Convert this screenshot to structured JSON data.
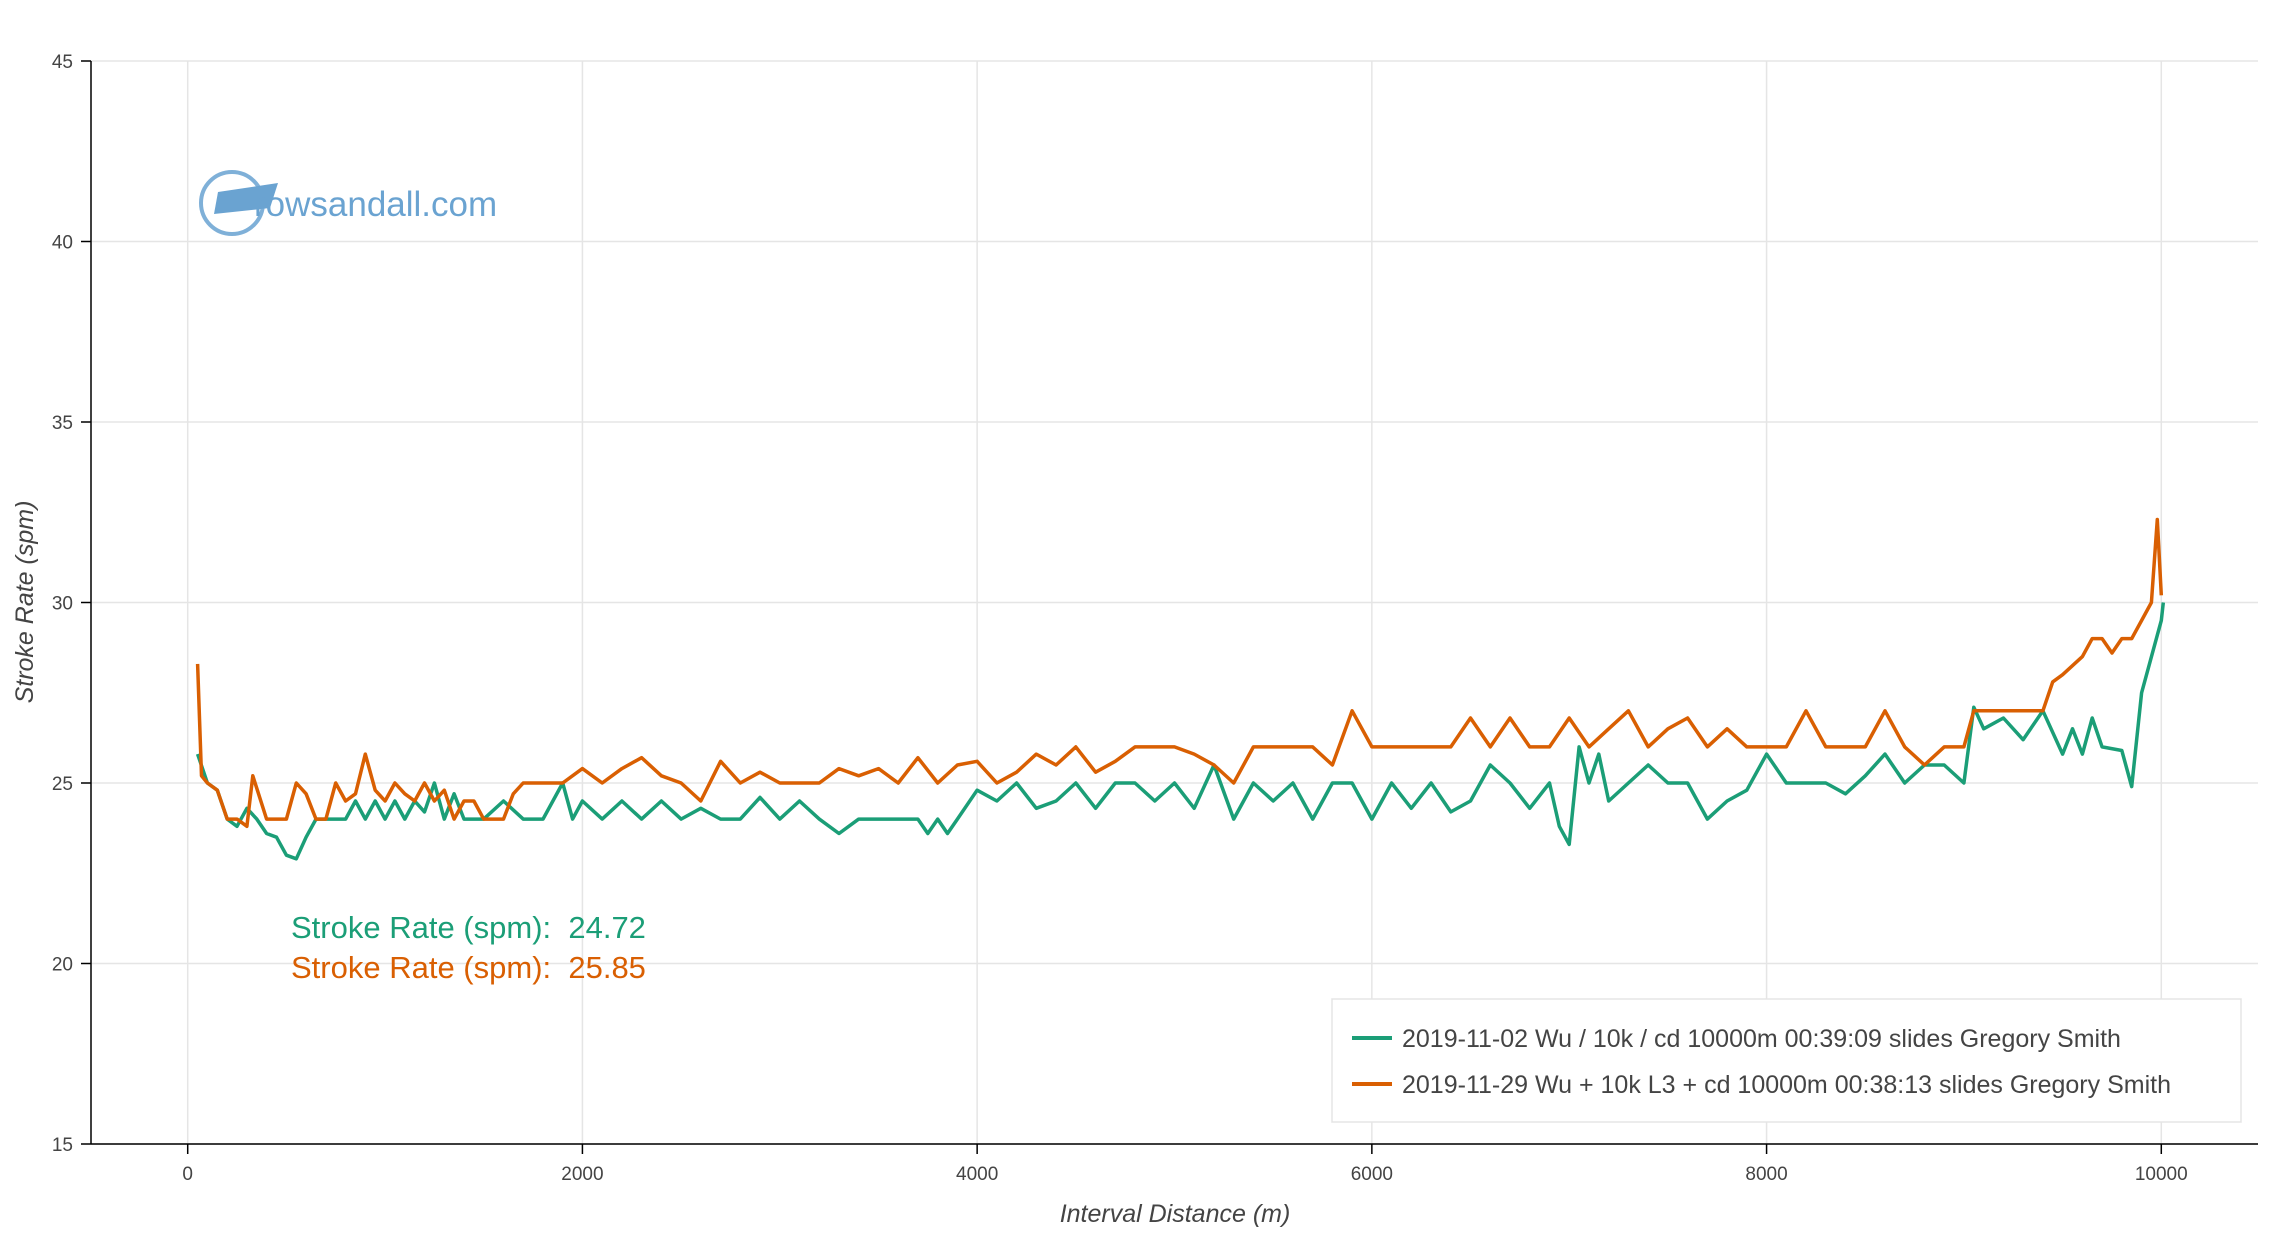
{
  "chart_data": {
    "type": "line",
    "xlabel": "Interval Distance (m)",
    "ylabel": "Stroke Rate (spm)",
    "logo": "rowsandall.com",
    "xlim": [
      -490,
      10490
    ],
    "ylim": [
      15,
      45
    ],
    "xticks": [
      0,
      2000,
      4000,
      6000,
      8000,
      10000
    ],
    "yticks": [
      15,
      20,
      25,
      30,
      35,
      40,
      45
    ],
    "grid": true,
    "legend": "lower right",
    "annotations": [
      {
        "text": "Stroke Rate (spm):  24.72",
        "color": "#1b9e77"
      },
      {
        "text": "Stroke Rate (spm):  25.85",
        "color": "#d95f02"
      }
    ],
    "series": [
      {
        "name": "2019-11-02 Wu / 10k / cd 10000m 00:39:09 slides Gregory Smith",
        "color": "#1b9e77",
        "x": [
          50,
          100,
          150,
          200,
          250,
          300,
          350,
          400,
          450,
          500,
          550,
          600,
          650,
          700,
          800,
          850,
          900,
          950,
          1000,
          1050,
          1100,
          1150,
          1200,
          1250,
          1300,
          1350,
          1400,
          1500,
          1600,
          1700,
          1800,
          1900,
          1950,
          2000,
          2100,
          2200,
          2300,
          2400,
          2500,
          2600,
          2700,
          2800,
          2900,
          3000,
          3100,
          3200,
          3300,
          3400,
          3500,
          3600,
          3700,
          3750,
          3800,
          3850,
          3900,
          4000,
          4100,
          4200,
          4300,
          4400,
          4500,
          4600,
          4700,
          4800,
          4900,
          5000,
          5100,
          5200,
          5300,
          5400,
          5500,
          5600,
          5700,
          5800,
          5900,
          6000,
          6100,
          6200,
          6300,
          6400,
          6500,
          6600,
          6700,
          6800,
          6900,
          6950,
          7000,
          7050,
          7100,
          7150,
          7200,
          7300,
          7400,
          7500,
          7600,
          7700,
          7800,
          7900,
          8000,
          8100,
          8200,
          8300,
          8400,
          8500,
          8600,
          8700,
          8800,
          8900,
          9000,
          9050,
          9100,
          9200,
          9300,
          9400,
          9500,
          9550,
          9600,
          9650,
          9700,
          9800,
          9850,
          9900,
          10000,
          10010
        ],
        "values": [
          25.8,
          25,
          24.8,
          24,
          23.8,
          24.3,
          24,
          23.6,
          23.5,
          23,
          22.9,
          23.5,
          24,
          24,
          24,
          24.5,
          24,
          24.5,
          24,
          24.5,
          24,
          24.5,
          24.2,
          25,
          24,
          24.7,
          24,
          24,
          24.5,
          24,
          24,
          25,
          24,
          24.5,
          24,
          24.5,
          24,
          24.5,
          24,
          24.3,
          24,
          24,
          24.6,
          24,
          24.5,
          24,
          23.6,
          24,
          24,
          24,
          24,
          23.6,
          24,
          23.6,
          24,
          24.8,
          24.5,
          25,
          24.3,
          24.5,
          25,
          24.3,
          25,
          25,
          24.5,
          25,
          24.3,
          25.5,
          24,
          25,
          24.5,
          25,
          24,
          25,
          25,
          24,
          25,
          24.3,
          25,
          24.2,
          24.5,
          25.5,
          25,
          24.3,
          25,
          23.8,
          23.3,
          26,
          25,
          25.8,
          24.5,
          25,
          25.5,
          25,
          25,
          24,
          24.5,
          24.8,
          25.8,
          25,
          25,
          25,
          24.7,
          25.2,
          25.8,
          25,
          25.5,
          25.5,
          25,
          27.1,
          26.5,
          26.8,
          26.2,
          27,
          25.8,
          26.5,
          25.8,
          26.8,
          26,
          25.9,
          24.9,
          27.5,
          29.5,
          30
        ]
      },
      {
        "name": "2019-11-29 Wu + 10k L3 + cd 10000m 00:38:13 slides Gregory Smith",
        "color": "#d95f02",
        "x": [
          50,
          70,
          100,
          150,
          200,
          250,
          300,
          330,
          400,
          450,
          500,
          550,
          600,
          650,
          700,
          750,
          800,
          850,
          900,
          950,
          1000,
          1050,
          1100,
          1150,
          1200,
          1250,
          1300,
          1350,
          1400,
          1450,
          1500,
          1600,
          1650,
          1700,
          1800,
          1900,
          2000,
          2100,
          2200,
          2300,
          2400,
          2500,
          2600,
          2700,
          2800,
          2900,
          3000,
          3100,
          3200,
          3300,
          3400,
          3500,
          3600,
          3700,
          3800,
          3900,
          4000,
          4100,
          4200,
          4300,
          4400,
          4500,
          4600,
          4700,
          4800,
          4900,
          5000,
          5100,
          5200,
          5300,
          5400,
          5500,
          5600,
          5700,
          5800,
          5900,
          6000,
          6100,
          6200,
          6300,
          6400,
          6500,
          6600,
          6700,
          6800,
          6900,
          7000,
          7100,
          7200,
          7300,
          7400,
          7500,
          7600,
          7700,
          7800,
          7900,
          8000,
          8100,
          8200,
          8300,
          8400,
          8500,
          8600,
          8700,
          8800,
          8900,
          9000,
          9050,
          9200,
          9300,
          9400,
          9450,
          9500,
          9600,
          9650,
          9700,
          9750,
          9800,
          9850,
          9900,
          9950,
          9980,
          10000
        ],
        "values": [
          28.3,
          25.2,
          25,
          24.8,
          24,
          24,
          23.8,
          25.2,
          24,
          24,
          24,
          25,
          24.7,
          24,
          24,
          25,
          24.5,
          24.7,
          25.8,
          24.8,
          24.5,
          25,
          24.7,
          24.5,
          25,
          24.5,
          24.8,
          24,
          24.5,
          24.5,
          24,
          24,
          24.7,
          25,
          25,
          25,
          25.4,
          25,
          25.4,
          25.7,
          25.2,
          25,
          24.5,
          25.6,
          25,
          25.3,
          25,
          25,
          25,
          25.4,
          25.2,
          25.4,
          25,
          25.7,
          25,
          25.5,
          25.6,
          25,
          25.3,
          25.8,
          25.5,
          26,
          25.3,
          25.6,
          26,
          26,
          26,
          25.8,
          25.5,
          25,
          26,
          26,
          26,
          26,
          25.5,
          27,
          26,
          26,
          26,
          26,
          26,
          26.8,
          26,
          26.8,
          26,
          26,
          26.8,
          26,
          26.5,
          27,
          26,
          26.5,
          26.8,
          26,
          26.5,
          26,
          26,
          26,
          27,
          26,
          26,
          26,
          27,
          26,
          25.5,
          26,
          26,
          27,
          27,
          27,
          27,
          27.8,
          28,
          28.5,
          29,
          29,
          28.6,
          29,
          29,
          29.5,
          30,
          32.3,
          30.2
        ]
      }
    ]
  }
}
